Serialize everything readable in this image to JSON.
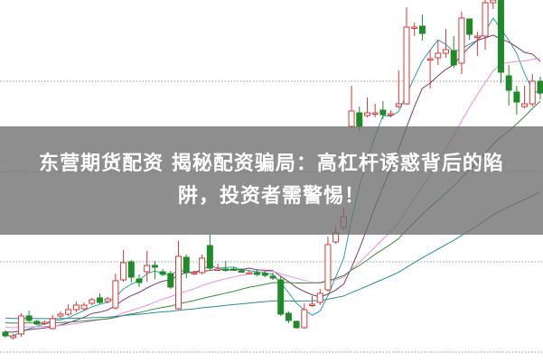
{
  "banner": {
    "line1": "东营期货配资 揭秘配资骗局：高杠杆诱惑背后的陷",
    "line2": "阱，投资者需警惕！"
  },
  "colors": {
    "up": "#d23a3a",
    "down": "#1e8a2a",
    "grid": "#9a9a9a",
    "ma": [
      "#2aa0a8",
      "#7a3a6a",
      "#e58fe0",
      "#3a8a3a",
      "#2a8a9a"
    ]
  },
  "chart_data": {
    "type": "candlestick",
    "title": "",
    "xlabel": "",
    "ylabel": "",
    "grid": "horizontal-dotted",
    "moving_averages": [
      5,
      10,
      20,
      30,
      60
    ],
    "candles": [
      {
        "o": 33,
        "c": 29,
        "h": 35,
        "l": 27
      },
      {
        "o": 27,
        "c": 29,
        "h": 31,
        "l": 25
      },
      {
        "o": 31,
        "c": 51,
        "h": 54,
        "l": 28
      },
      {
        "o": 51,
        "c": 46,
        "h": 57,
        "l": 44
      },
      {
        "o": 45,
        "c": 42,
        "h": 47,
        "l": 41
      },
      {
        "o": 43,
        "c": 44,
        "h": 46,
        "l": 41
      },
      {
        "o": 37,
        "c": 48,
        "h": 52,
        "l": 36
      },
      {
        "o": 51,
        "c": 53,
        "h": 56,
        "l": 49
      },
      {
        "o": 53,
        "c": 58,
        "h": 64,
        "l": 51
      },
      {
        "o": 58,
        "c": 63,
        "h": 67,
        "l": 55
      },
      {
        "o": 59,
        "c": 63,
        "h": 66,
        "l": 57
      },
      {
        "o": 65,
        "c": 69,
        "h": 71,
        "l": 63
      },
      {
        "o": 71,
        "c": 66,
        "h": 76,
        "l": 64
      },
      {
        "o": 67,
        "c": 70,
        "h": 72,
        "l": 65
      },
      {
        "o": 60,
        "c": 90,
        "h": 98,
        "l": 58
      },
      {
        "o": 91,
        "c": 110,
        "h": 124,
        "l": 89
      },
      {
        "o": 111,
        "c": 94,
        "h": 113,
        "l": 88
      },
      {
        "o": 92,
        "c": 88,
        "h": 97,
        "l": 83
      },
      {
        "o": 100,
        "c": 107,
        "h": 123,
        "l": 89
      },
      {
        "o": 107,
        "c": 105,
        "h": 112,
        "l": 92
      },
      {
        "o": 100,
        "c": 97,
        "h": 103,
        "l": 95
      },
      {
        "o": 98,
        "c": 83,
        "h": 101,
        "l": 81
      },
      {
        "o": 59,
        "c": 117,
        "h": 134,
        "l": 58
      },
      {
        "o": 116,
        "c": 99,
        "h": 119,
        "l": 93
      },
      {
        "o": 99,
        "c": 99,
        "h": 101,
        "l": 96
      },
      {
        "o": 99,
        "c": 115,
        "h": 119,
        "l": 97
      },
      {
        "o": 129,
        "c": 104,
        "h": 141,
        "l": 101
      },
      {
        "o": 103,
        "c": 103,
        "h": 109,
        "l": 101
      },
      {
        "o": 103,
        "c": 102,
        "h": 112,
        "l": 100
      },
      {
        "o": 103,
        "c": 102,
        "h": 105,
        "l": 101
      },
      {
        "o": 101,
        "c": 100,
        "h": 104,
        "l": 99
      },
      {
        "o": 99,
        "c": 99,
        "h": 101,
        "l": 97
      },
      {
        "o": 99,
        "c": 97,
        "h": 103,
        "l": 95
      },
      {
        "o": 98,
        "c": 96,
        "h": 101,
        "l": 94
      },
      {
        "o": 95,
        "c": 93,
        "h": 99,
        "l": 91
      },
      {
        "o": 91,
        "c": 53,
        "h": 95,
        "l": 51
      },
      {
        "o": 54,
        "c": 46,
        "h": 56,
        "l": 43
      },
      {
        "o": 45,
        "c": 38,
        "h": 46,
        "l": 37
      },
      {
        "o": 38,
        "c": 58,
        "h": 65,
        "l": 37
      },
      {
        "o": 64,
        "c": 64,
        "h": 73,
        "l": 61
      },
      {
        "o": 66,
        "c": 76,
        "h": 81,
        "l": 63
      },
      {
        "o": 80,
        "c": 130,
        "h": 139,
        "l": 78
      },
      {
        "o": 133,
        "c": 143,
        "h": 151,
        "l": 131
      },
      {
        "o": 149,
        "c": 161,
        "h": 171,
        "l": 146
      },
      {
        "o": 261,
        "c": 278,
        "h": 306,
        "l": 259
      },
      {
        "o": 276,
        "c": 261,
        "h": 283,
        "l": 256
      },
      {
        "o": 273,
        "c": 276,
        "h": 293,
        "l": 271
      },
      {
        "o": 276,
        "c": 276,
        "h": 286,
        "l": 271
      },
      {
        "o": 279,
        "c": 274,
        "h": 289,
        "l": 269
      },
      {
        "o": 275,
        "c": 275,
        "h": 279,
        "l": 271
      },
      {
        "o": 283,
        "c": 286,
        "h": 323,
        "l": 281
      },
      {
        "o": 286,
        "c": 371,
        "h": 393,
        "l": 285
      },
      {
        "o": 371,
        "c": 371,
        "h": 376,
        "l": 361
      },
      {
        "o": 372,
        "c": 364,
        "h": 385,
        "l": 356
      },
      {
        "o": 336,
        "c": 336,
        "h": 346,
        "l": 303
      },
      {
        "o": 337,
        "c": 342,
        "h": 356,
        "l": 329
      },
      {
        "o": 342,
        "c": 346,
        "h": 369,
        "l": 337
      },
      {
        "o": 345,
        "c": 329,
        "h": 361,
        "l": 326
      },
      {
        "o": 331,
        "c": 381,
        "h": 388,
        "l": 319
      },
      {
        "o": 380,
        "c": 363,
        "h": 380,
        "l": 357
      },
      {
        "o": 361,
        "c": 361,
        "h": 366,
        "l": 339
      },
      {
        "o": 361,
        "c": 398,
        "h": 401,
        "l": 346
      },
      {
        "o": 398,
        "c": 401,
        "h": 401,
        "l": 391
      },
      {
        "o": 401,
        "c": 321,
        "h": 401,
        "l": 309
      },
      {
        "o": 317,
        "c": 301,
        "h": 329,
        "l": 284
      },
      {
        "o": 299,
        "c": 288,
        "h": 306,
        "l": 274
      },
      {
        "o": 283,
        "c": 286,
        "h": 306,
        "l": 281
      },
      {
        "o": 286,
        "c": 311,
        "h": 319,
        "l": 283
      },
      {
        "o": 311,
        "c": 298,
        "h": 316,
        "l": 291
      }
    ]
  }
}
